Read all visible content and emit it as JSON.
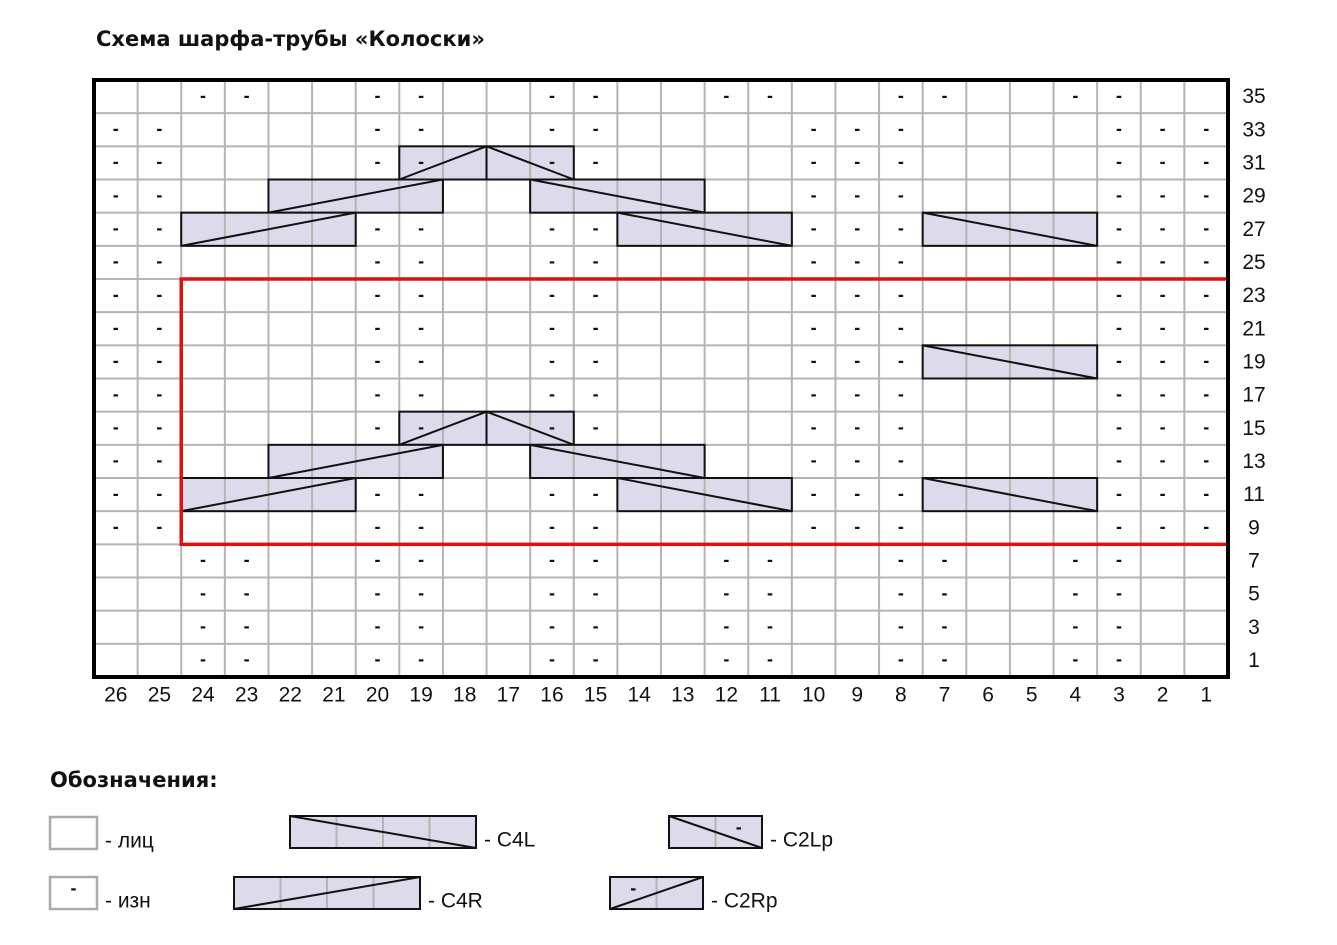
{
  "title": "Схема шарфа-трубы «Колоски»",
  "grid": {
    "columns": [
      26,
      25,
      24,
      23,
      22,
      21,
      20,
      19,
      18,
      17,
      16,
      15,
      14,
      13,
      12,
      11,
      10,
      9,
      8,
      7,
      6,
      5,
      4,
      3,
      2,
      1
    ],
    "purl_symbol": "-",
    "rows": [
      {
        "label": 35,
        "purl": [
          24,
          23,
          20,
          19,
          16,
          15,
          12,
          11,
          8,
          7,
          4,
          3
        ]
      },
      {
        "label": 33,
        "purl": [
          26,
          25,
          20,
          19,
          16,
          15,
          10,
          9,
          8,
          3,
          2,
          1
        ]
      },
      {
        "label": 31,
        "purl": [
          26,
          25,
          20,
          19,
          16,
          15,
          10,
          9,
          8,
          3,
          2,
          1
        ]
      },
      {
        "label": 29,
        "purl": [
          26,
          25,
          10,
          9,
          8,
          3,
          2,
          1
        ]
      },
      {
        "label": 27,
        "purl": [
          26,
          25,
          20,
          19,
          16,
          15,
          10,
          9,
          8,
          3,
          2,
          1
        ]
      },
      {
        "label": 25,
        "purl": [
          26,
          25,
          20,
          19,
          16,
          15,
          10,
          9,
          8,
          3,
          2,
          1
        ]
      },
      {
        "label": 23,
        "purl": [
          26,
          25,
          20,
          19,
          16,
          15,
          10,
          9,
          8,
          3,
          2,
          1
        ]
      },
      {
        "label": 21,
        "purl": [
          26,
          25,
          20,
          19,
          16,
          15,
          10,
          9,
          8,
          3,
          2,
          1
        ]
      },
      {
        "label": 19,
        "purl": [
          26,
          25,
          20,
          19,
          16,
          15,
          10,
          9,
          8,
          3,
          2,
          1
        ]
      },
      {
        "label": 17,
        "purl": [
          26,
          25,
          20,
          19,
          16,
          15,
          10,
          9,
          8,
          3,
          2,
          1
        ]
      },
      {
        "label": 15,
        "purl": [
          26,
          25,
          20,
          19,
          16,
          15,
          10,
          9,
          8,
          3,
          2,
          1
        ]
      },
      {
        "label": 13,
        "purl": [
          26,
          25,
          10,
          9,
          8,
          3,
          2,
          1
        ]
      },
      {
        "label": 11,
        "purl": [
          26,
          25,
          20,
          19,
          16,
          15,
          10,
          9,
          8,
          3,
          2,
          1
        ]
      },
      {
        "label": 9,
        "purl": [
          26,
          25,
          20,
          19,
          16,
          15,
          10,
          9,
          8,
          3,
          2,
          1
        ]
      },
      {
        "label": 7,
        "purl": [
          24,
          23,
          20,
          19,
          16,
          15,
          12,
          11,
          8,
          7,
          4,
          3
        ]
      },
      {
        "label": 5,
        "purl": [
          24,
          23,
          20,
          19,
          16,
          15,
          12,
          11,
          8,
          7,
          4,
          3
        ]
      },
      {
        "label": 3,
        "purl": [
          24,
          23,
          20,
          19,
          16,
          15,
          12,
          11,
          8,
          7,
          4,
          3
        ]
      },
      {
        "label": 1,
        "purl": [
          24,
          23,
          20,
          19,
          16,
          15,
          12,
          11,
          8,
          7,
          4,
          3
        ]
      }
    ],
    "cables": [
      {
        "row": 31,
        "from": 19,
        "to": 18,
        "type": "C2Rp"
      },
      {
        "row": 31,
        "from": 17,
        "to": 16,
        "type": "C2Lp"
      },
      {
        "row": 29,
        "from": 22,
        "to": 19,
        "type": "C4R"
      },
      {
        "row": 29,
        "from": 16,
        "to": 13,
        "type": "C4L"
      },
      {
        "row": 27,
        "from": 24,
        "to": 21,
        "type": "C4R"
      },
      {
        "row": 27,
        "from": 14,
        "to": 11,
        "type": "C4L"
      },
      {
        "row": 27,
        "from": 7,
        "to": 4,
        "type": "C4L"
      },
      {
        "row": 19,
        "from": 7,
        "to": 4,
        "type": "C4L"
      },
      {
        "row": 15,
        "from": 19,
        "to": 18,
        "type": "C2Rp"
      },
      {
        "row": 15,
        "from": 17,
        "to": 16,
        "type": "C2Lp"
      },
      {
        "row": 13,
        "from": 22,
        "to": 19,
        "type": "C4R"
      },
      {
        "row": 13,
        "from": 16,
        "to": 13,
        "type": "C4L"
      },
      {
        "row": 11,
        "from": 24,
        "to": 21,
        "type": "C4R"
      },
      {
        "row": 11,
        "from": 14,
        "to": 11,
        "type": "C4L"
      },
      {
        "row": 11,
        "from": 7,
        "to": 4,
        "type": "C4L"
      }
    ],
    "highlight": {
      "rows": [
        23,
        9
      ],
      "cols": [
        24,
        1
      ]
    }
  },
  "legend": {
    "title": "Обозначения:",
    "items": [
      {
        "label": "- лиц"
      },
      {
        "label": "- изн",
        "symbol": "-"
      },
      {
        "label": "- C4L",
        "type": "C4L"
      },
      {
        "label": "- C4R",
        "type": "C4R"
      },
      {
        "label": "- C2Lp",
        "type": "C2Lp"
      },
      {
        "label": "- C2Rp",
        "type": "C2Rp"
      }
    ]
  }
}
